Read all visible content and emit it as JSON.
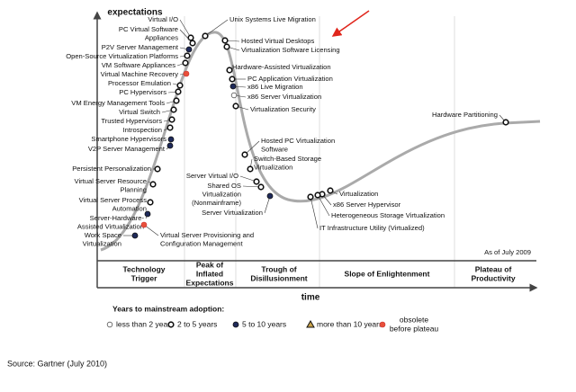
{
  "axis": {
    "y_label": "expectations",
    "x_label": "time"
  },
  "as_of": "As of July 2009",
  "technologies": [
    {
      "label": [
        "Virtual I/O"
      ]
    },
    {
      "label": [
        "PC Virtual Software",
        "Appliances"
      ]
    },
    {
      "label": [
        "P2V Server Management"
      ]
    },
    {
      "label": [
        "Open-Source Virtualization Platforms"
      ]
    },
    {
      "label": [
        "VM Software Appliances"
      ]
    },
    {
      "label": [
        "Virtual Machine Recovery"
      ]
    },
    {
      "label": [
        "Processor Emulation"
      ]
    },
    {
      "label": [
        "PC Hypervisors"
      ]
    },
    {
      "label": [
        "VM Energy Management Tools"
      ]
    },
    {
      "label": [
        "Virtual Switch"
      ]
    },
    {
      "label": [
        "Trusted Hypervisors"
      ]
    },
    {
      "label": [
        "Introspection"
      ]
    },
    {
      "label": [
        "Smartphone Hypervisors"
      ]
    },
    {
      "label": [
        "V2P Server Management"
      ]
    },
    {
      "label": [
        "Persistent Personalization"
      ]
    },
    {
      "label": [
        "Virtual Server Resource",
        "Planning"
      ]
    },
    {
      "label": [
        "Virtual Server Process",
        "Automation"
      ]
    },
    {
      "label": [
        "Server-Hardware-",
        "Assisted Virtualization"
      ]
    },
    {
      "label": [
        "Work Space",
        "Virtualization"
      ]
    },
    {
      "label": [
        "Virtual Server Provisioning and",
        "Configuration Management"
      ]
    },
    {
      "label": [
        "Unix Systems Live Migration"
      ]
    },
    {
      "label": [
        "Hosted Virtual Desktops"
      ]
    },
    {
      "label": [
        "Virtualization Software Licensing"
      ]
    },
    {
      "label": [
        "Hardware-Assisted Virtualization"
      ]
    },
    {
      "label": [
        "PC Application Virtualization"
      ]
    },
    {
      "label": [
        "x86 Live Migration"
      ]
    },
    {
      "label": [
        "x86 Server Virtualization"
      ]
    },
    {
      "label": [
        "Virtualization Security"
      ]
    },
    {
      "label": [
        "Hosted PC Virtualization",
        "Software"
      ]
    },
    {
      "label": [
        "Switch-Based Storage",
        "Virtualization"
      ]
    },
    {
      "label": [
        "Server Virtual I/O"
      ]
    },
    {
      "label": [
        "Shared OS",
        "Virtualization",
        "(Nonmainframe)"
      ]
    },
    {
      "label": [
        "Server Virtualization"
      ]
    },
    {
      "label": [
        "Virtualization"
      ]
    },
    {
      "label": [
        "x86 Server Hypervisor"
      ]
    },
    {
      "label": [
        "Heterogeneous Storage Virtualization"
      ]
    },
    {
      "label": [
        "IT Infrastructure Utility (Virtualized)"
      ]
    },
    {
      "label": [
        "Hardware Partitioning"
      ]
    }
  ],
  "phases": [
    {
      "label": [
        "Technology",
        "Trigger"
      ]
    },
    {
      "label": [
        "Peak of",
        "Inflated",
        "Expectations"
      ]
    },
    {
      "label": [
        "Trough of",
        "Disillusionment"
      ]
    },
    {
      "label": [
        "Slope of Enlightenment"
      ]
    },
    {
      "label": [
        "Plateau of",
        "Productivity"
      ]
    }
  ],
  "legend": {
    "title": "Years to mainstream adoption:",
    "items": [
      {
        "label": [
          "less than 2 years"
        ]
      },
      {
        "label": [
          "2 to 5 years"
        ]
      },
      {
        "label": [
          "5 to 10 years"
        ]
      },
      {
        "label": [
          "more than 10 years"
        ]
      },
      {
        "label": [
          "obsolete",
          "before plateau"
        ]
      }
    ]
  },
  "source": "Source: Gartner (July 2010)"
}
